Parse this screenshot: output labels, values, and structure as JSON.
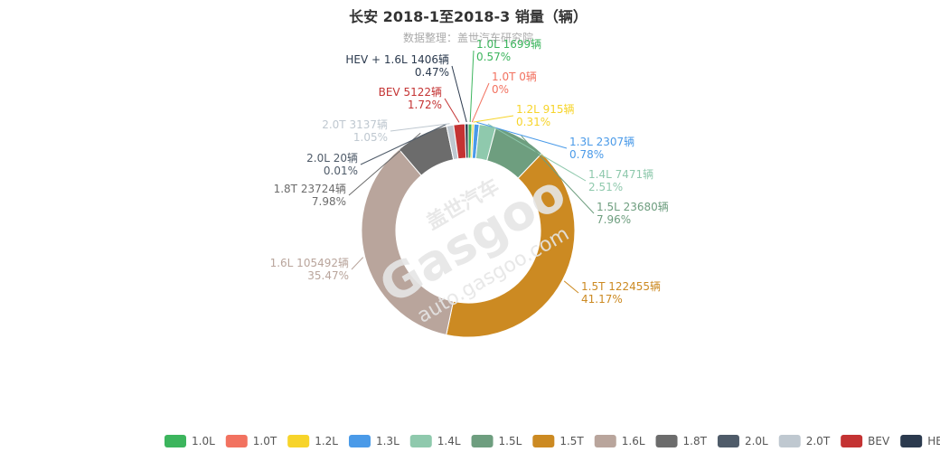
{
  "chart_data": {
    "type": "pie",
    "donut": true,
    "title": "长安 2018-1至2018-3 销量（辆）",
    "subtitle": "数据整理：盖世汽车研究院",
    "unit": "辆",
    "legend_position": "bottom-right",
    "slices": [
      {
        "name": "1.0L",
        "value": 1699,
        "percent": "0.57%",
        "color": "#3cb55d"
      },
      {
        "name": "1.0T",
        "value": 0,
        "percent": "0%",
        "color": "#f27260"
      },
      {
        "name": "1.2L",
        "value": 915,
        "percent": "0.31%",
        "color": "#f7d42a"
      },
      {
        "name": "1.3L",
        "value": 2307,
        "percent": "0.78%",
        "color": "#4a9ae8"
      },
      {
        "name": "1.4L",
        "value": 7471,
        "percent": "2.51%",
        "color": "#8fc9ad"
      },
      {
        "name": "1.5L",
        "value": 23680,
        "percent": "7.96%",
        "color": "#6e9e7f"
      },
      {
        "name": "1.5T",
        "value": 122455,
        "percent": "41.17%",
        "color": "#cc8a22"
      },
      {
        "name": "1.6L",
        "value": 105492,
        "percent": "35.47%",
        "color": "#b9a59c"
      },
      {
        "name": "1.8T",
        "value": 23724,
        "percent": "7.98%",
        "color": "#6c6c6c"
      },
      {
        "name": "2.0L",
        "value": 20,
        "percent": "0.01%",
        "color": "#4f5b69"
      },
      {
        "name": "2.0T",
        "value": 3137,
        "percent": "1.05%",
        "color": "#bfc8d0"
      },
      {
        "name": "BEV",
        "value": 5122,
        "percent": "1.72%",
        "color": "#c43333"
      },
      {
        "name": "HEV + 1.6L",
        "value": 1406,
        "percent": "0.47%",
        "color": "#2b3a4e"
      }
    ]
  },
  "watermark": {
    "brand_cn": "盖世汽车",
    "brand_en": "Gasgoo",
    "url": "auto.gasgoo.com"
  }
}
